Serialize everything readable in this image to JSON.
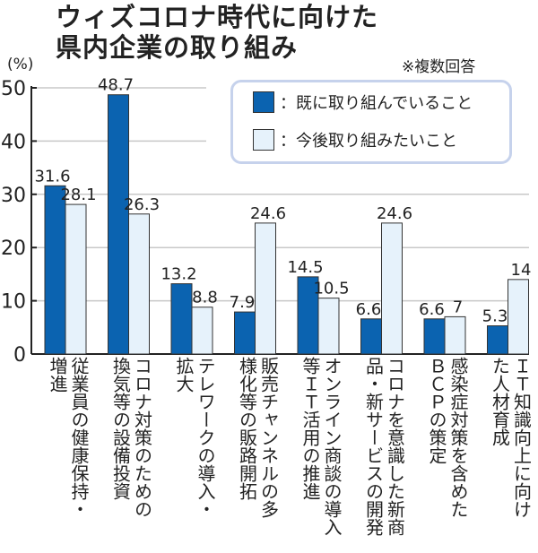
{
  "title_lines": [
    "ウィズコロナ時代に向けた",
    "県内企業の取り組み"
  ],
  "note": "※複数回答",
  "colors": {
    "existing": "#0b63b0",
    "future": "#e6f2fb",
    "legend_border": "#c6d2ec",
    "grid": "#c8c8c8"
  },
  "chart_data": {
    "type": "bar",
    "title": "ウィズコロナ時代に向けた県内企業の取り組み",
    "ylabel": "(%)",
    "ylim": [
      0,
      50
    ],
    "yticks": [
      "0",
      "10",
      "20",
      "30",
      "40",
      "50"
    ],
    "grid": true,
    "legend_placement": "top-right",
    "categories": [
      {
        "name": "従業員の健康保持・増進",
        "lines": [
          "従業員の健康保持・",
          "増進"
        ]
      },
      {
        "name": "コロナ対策のための換気等の設備投資",
        "lines": [
          "コロナ対策のための",
          "換気等の設備投資"
        ]
      },
      {
        "name": "テレワークの導入・拡大",
        "lines": [
          "テレワークの導入・",
          "拡大"
        ]
      },
      {
        "name": "販売チャンネルの多様化等の販路開拓",
        "lines": [
          "販売チャンネルの多",
          "様化等の販路開拓"
        ]
      },
      {
        "name": "オンライン商談の導入等ＩＴ活用の推進",
        "lines": [
          "オンライン商談の導入",
          "等ＩＴ活用の推進"
        ]
      },
      {
        "name": "コロナを意識した新商品・新サービスの開発",
        "lines": [
          "コロナを意識した新商",
          "品・新サービスの開発"
        ]
      },
      {
        "name": "感染症対策を含めたＢＣＰの策定",
        "lines": [
          "感染症対策を含めた",
          "ＢＣＰの策定"
        ]
      },
      {
        "name": "ＩＴ知識向上に向けた人材育成",
        "lines": [
          "ＩＴ知識向上に向け",
          "た人材育成"
        ]
      }
    ],
    "series": [
      {
        "name": "：既に取り組んでいること",
        "values": [
          31.6,
          48.7,
          13.2,
          7.9,
          14.5,
          6.6,
          6.6,
          5.3
        ],
        "labels": [
          "31.6",
          "48.7",
          "13.2",
          "7.9",
          "14.5",
          "6.6",
          "6.6",
          "5.3"
        ]
      },
      {
        "name": "：今後取り組みたいこと",
        "values": [
          28.1,
          26.3,
          8.8,
          24.6,
          10.5,
          24.6,
          7,
          14
        ],
        "labels": [
          "28.1",
          "26.3",
          "8.8",
          "24.6",
          "10.5",
          "24.6",
          "7",
          "14"
        ]
      }
    ]
  }
}
